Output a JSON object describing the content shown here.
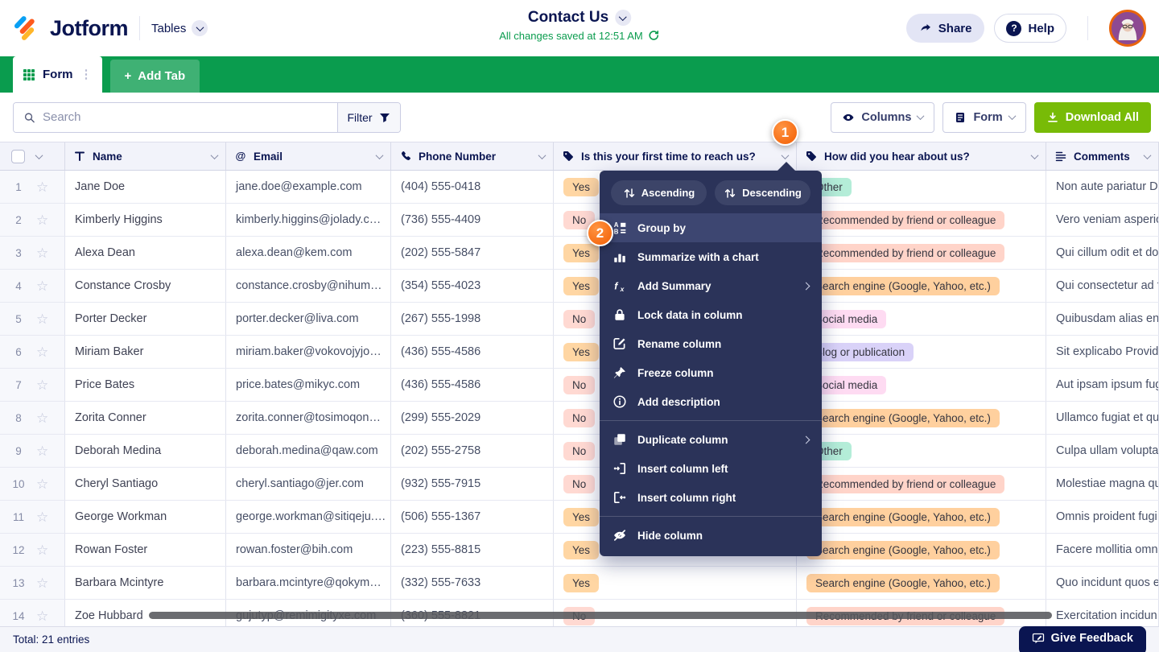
{
  "header": {
    "logo_text": "Jotform",
    "product": "Tables",
    "title": "Contact Us",
    "autosave": "All changes saved at 12:51 AM",
    "share_label": "Share",
    "help_label": "Help",
    "help_q": "?"
  },
  "tabs": {
    "form_label": "Form",
    "add_tab_label": "Add Tab",
    "add_tab_plus": "+"
  },
  "toolbar": {
    "search_placeholder": "Search",
    "filter_label": "Filter",
    "columns_label": "Columns",
    "form_label": "Form",
    "download_label": "Download All"
  },
  "table": {
    "columns": [
      {
        "label": "Name",
        "icon": "text-format-icon"
      },
      {
        "label": "Email",
        "icon": "at-icon"
      },
      {
        "label": "Phone Number",
        "icon": "phone-icon"
      },
      {
        "label": "Is this your first time to reach us?",
        "icon": "tag-icon"
      },
      {
        "label": "How did you hear about us?",
        "icon": "tag-icon"
      },
      {
        "label": "Comments",
        "icon": "paragraph-icon"
      }
    ],
    "rows": [
      {
        "n": "1",
        "name": "Jane Doe",
        "email": "jane.doe@example.com",
        "phone": "(404) 555-0418",
        "first": "Yes",
        "source": "Other",
        "source_key": "other",
        "comment": "Non aute pariatur Du"
      },
      {
        "n": "2",
        "name": "Kimberly Higgins",
        "email": "kimberly.higgins@jolady.c…",
        "phone": "(736) 555-4409",
        "first": "No",
        "source": "Recommended by friend or colleague",
        "source_key": "friend",
        "comment": "Vero veniam asperio"
      },
      {
        "n": "3",
        "name": "Alexa Dean",
        "email": "alexa.dean@kem.com",
        "phone": "(202) 555-5847",
        "first": "Yes",
        "source": "Recommended by friend or colleague",
        "source_key": "friend",
        "comment": "Qui cillum odit et do"
      },
      {
        "n": "4",
        "name": "Constance Crosby",
        "email": "constance.crosby@nihum…",
        "phone": "(354) 555-4023",
        "first": "Yes",
        "source": "Search engine (Google, Yahoo, etc.)",
        "source_key": "search",
        "comment": "Qui consectetur ad f"
      },
      {
        "n": "5",
        "name": "Porter Decker",
        "email": "porter.decker@liva.com",
        "phone": "(267) 555-1998",
        "first": "No",
        "source": "Social media",
        "source_key": "social",
        "comment": "Quibusdam alias eni"
      },
      {
        "n": "6",
        "name": "Miriam Baker",
        "email": "miriam.baker@vokovojyjo…",
        "phone": "(436) 555-4586",
        "first": "Yes",
        "source": "Blog or publication",
        "source_key": "blog",
        "comment": "Sit explicabo Provide"
      },
      {
        "n": "7",
        "name": "Price Bates",
        "email": "price.bates@mikyc.com",
        "phone": "(436) 555-4586",
        "first": "No",
        "source": "Social media",
        "source_key": "social",
        "comment": "Aut ipsam ipsum fug"
      },
      {
        "n": "8",
        "name": "Zorita Conner",
        "email": "zorita.conner@tosimoqon…",
        "phone": "(299) 555-2029",
        "first": "No",
        "source": "Search engine (Google, Yahoo, etc.)",
        "source_key": "search",
        "comment": "Ullamco fugiat et qu"
      },
      {
        "n": "9",
        "name": "Deborah Medina",
        "email": "deborah.medina@qaw.com",
        "phone": "(202) 555-2758",
        "first": "No",
        "source": "Other",
        "source_key": "other",
        "comment": "Culpa ullam volupta"
      },
      {
        "n": "10",
        "name": "Cheryl Santiago",
        "email": "cheryl.santiago@jer.com",
        "phone": "(932) 555-7915",
        "first": "No",
        "source": "Recommended by friend or colleague",
        "source_key": "friend",
        "comment": "Molestiae magna qu"
      },
      {
        "n": "11",
        "name": "George Workman",
        "email": "george.workman@sitiqeju.…",
        "phone": "(506) 555-1367",
        "first": "Yes",
        "source": "Search engine (Google, Yahoo, etc.)",
        "source_key": "search",
        "comment": "Omnis proident fugi"
      },
      {
        "n": "12",
        "name": "Rowan Foster",
        "email": "rowan.foster@bih.com",
        "phone": "(223) 555-8815",
        "first": "Yes",
        "source": "Search engine (Google, Yahoo, etc.)",
        "source_key": "search",
        "comment": "Facere mollitia omni"
      },
      {
        "n": "13",
        "name": "Barbara Mcintyre",
        "email": "barbara.mcintyre@qokym…",
        "phone": "(332) 555-7633",
        "first": "Yes",
        "source": "Search engine (Google, Yahoo, etc.)",
        "source_key": "search",
        "comment": "Quo incidunt quos e"
      },
      {
        "n": "14",
        "name": "Zoe Hubbard",
        "email": "gujutyp@remimigityxe.com",
        "phone": "(360) 555-8821",
        "first": "No",
        "source": "Recommended by friend or colleague",
        "source_key": "friend",
        "comment": "Exercitation incidun"
      }
    ]
  },
  "menu": {
    "sort_buttons": [
      {
        "label": "Ascending",
        "icon": "sort-arrows-icon"
      },
      {
        "label": "Descending",
        "icon": "sort-arrows-icon"
      }
    ],
    "items": [
      {
        "label": "Group by",
        "icon": "group-by-icon",
        "active": true
      },
      {
        "label": "Summarize with a chart",
        "icon": "chart-icon"
      },
      {
        "label": "Add Summary",
        "icon": "fx-icon",
        "submenu": true
      },
      {
        "label": "Lock data in column",
        "icon": "lock-icon"
      },
      {
        "label": "Rename column",
        "icon": "rename-icon"
      },
      {
        "label": "Freeze column",
        "icon": "freeze-icon"
      },
      {
        "label": "Add description",
        "icon": "info-icon",
        "divider_after": true
      },
      {
        "label": "Duplicate column",
        "icon": "duplicate-icon",
        "submenu": true
      },
      {
        "label": "Insert column left",
        "icon": "insert-left-icon"
      },
      {
        "label": "Insert column right",
        "icon": "insert-right-icon",
        "divider_after": true
      },
      {
        "label": "Hide column",
        "icon": "hide-icon"
      }
    ]
  },
  "annotations": {
    "step1": "1",
    "step2": "2"
  },
  "footer": {
    "total": "Total: 21 entries",
    "feedback_label": "Give Feedback"
  },
  "colors": {
    "brand_green": "#0a9c4e",
    "download_green": "#78bb07",
    "navy": "#0a1551",
    "menu_bg": "#2b3359",
    "badge_orange": "#f25e03",
    "yes_bg": "#ffd6a3",
    "no_bg": "#ffd9d2",
    "src_other": "#b4edd8",
    "src_friend": "#ffd4c9",
    "src_search": "#ffd09e",
    "src_social": "#fedbf2",
    "src_blog": "#d9d2f8"
  }
}
